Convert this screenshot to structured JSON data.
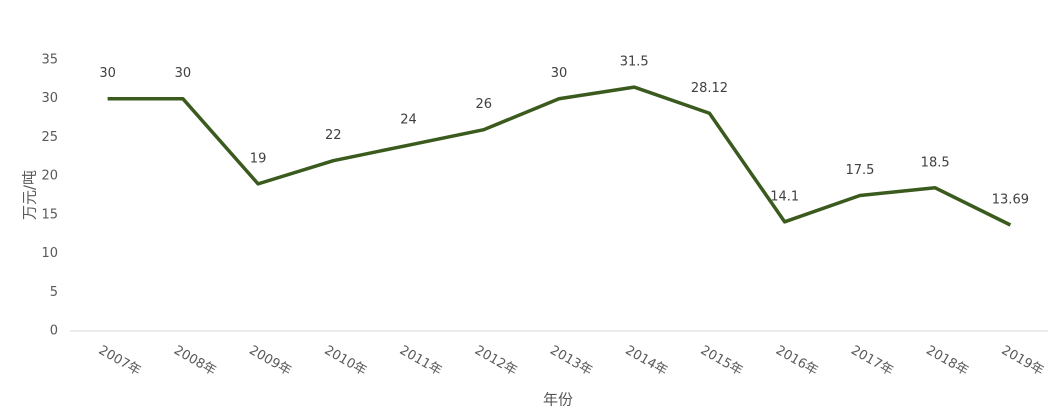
{
  "chart_data": {
    "type": "line",
    "x_label": "年份",
    "y_label": "万元/吨",
    "categories": [
      "2007年",
      "2008年",
      "2009年",
      "2010年",
      "2011年",
      "2012年",
      "2013年",
      "2014年",
      "2015年",
      "2016年",
      "2017年",
      "2018年",
      "2019年"
    ],
    "values": [
      30,
      30,
      19,
      22,
      24,
      26,
      30,
      31.5,
      28.12,
      14.1,
      17.5,
      18.5,
      13.69
    ],
    "color": "#3b5a1e",
    "ylim": [
      0,
      35
    ],
    "yticks": [
      0,
      5,
      10,
      15,
      20,
      25,
      30,
      35
    ],
    "grid": false,
    "data_labels": true
  }
}
